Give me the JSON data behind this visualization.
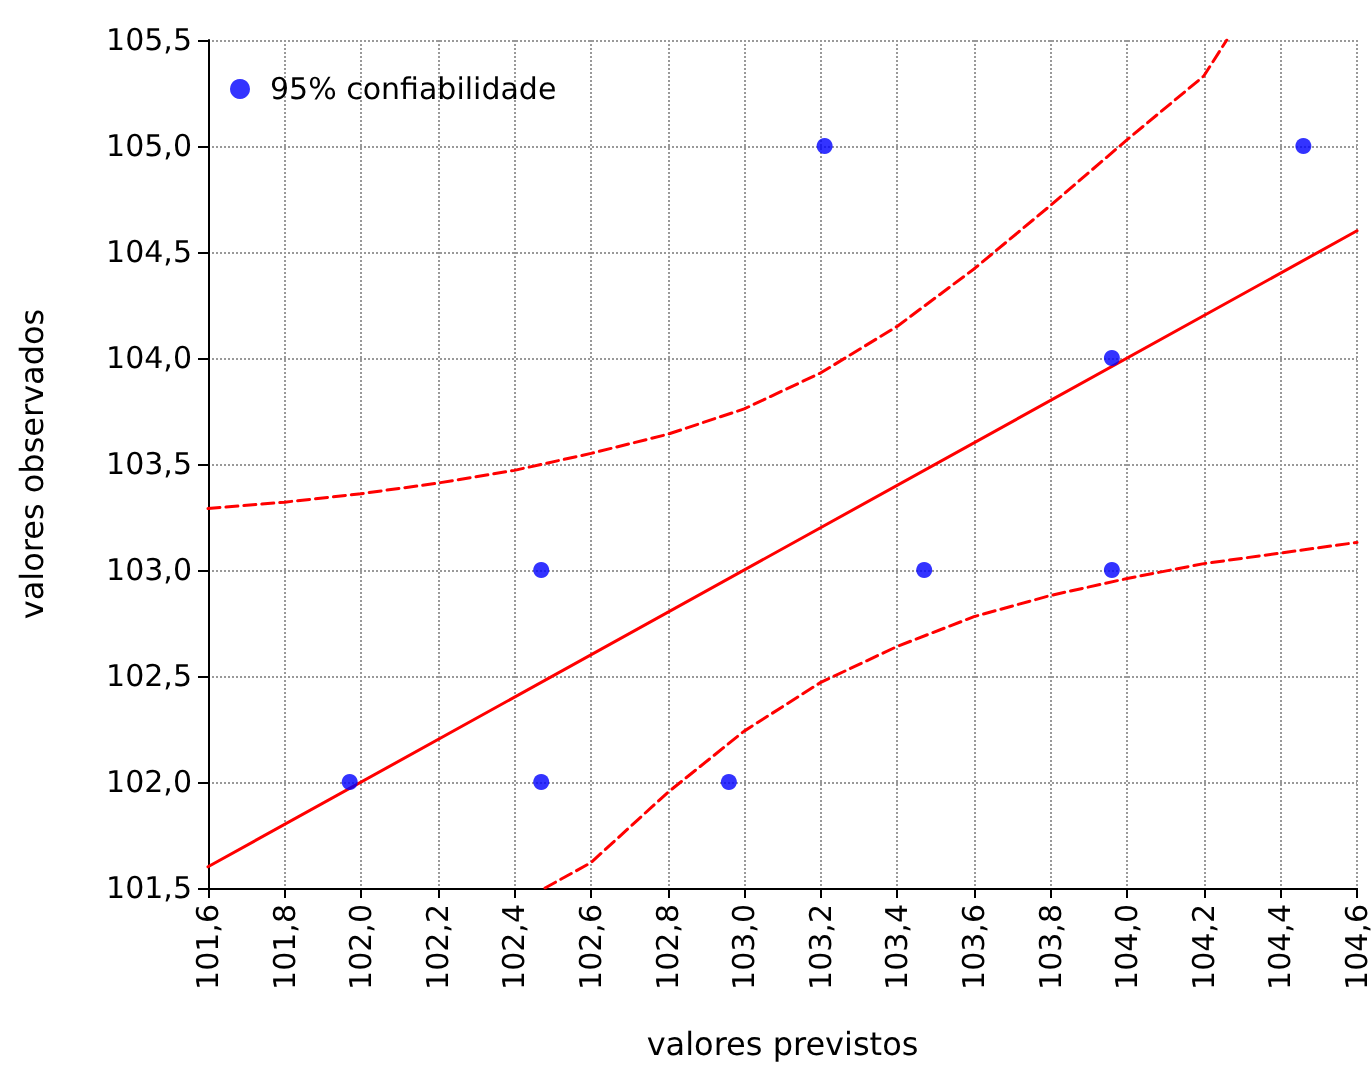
{
  "chart_data": {
    "type": "scatter",
    "xlabel": "valores previstos",
    "ylabel": "valores observados",
    "xlim": [
      101.6,
      104.6
    ],
    "ylim": [
      101.5,
      105.5
    ],
    "xticks": [
      {
        "value": 101.6,
        "label": "101,6"
      },
      {
        "value": 101.8,
        "label": "101,8"
      },
      {
        "value": 102.0,
        "label": "102,0"
      },
      {
        "value": 102.2,
        "label": "102,2"
      },
      {
        "value": 102.4,
        "label": "102,4"
      },
      {
        "value": 102.6,
        "label": "102,6"
      },
      {
        "value": 102.8,
        "label": "102,8"
      },
      {
        "value": 103.0,
        "label": "103,0"
      },
      {
        "value": 103.2,
        "label": "103,2"
      },
      {
        "value": 103.4,
        "label": "103,4"
      },
      {
        "value": 103.6,
        "label": "103,6"
      },
      {
        "value": 103.8,
        "label": "103,8"
      },
      {
        "value": 104.0,
        "label": "104,0"
      },
      {
        "value": 104.2,
        "label": "104,2"
      },
      {
        "value": 104.4,
        "label": "104,4"
      },
      {
        "value": 104.6,
        "label": "104,6"
      }
    ],
    "yticks": [
      {
        "value": 101.5,
        "label": "101,5"
      },
      {
        "value": 102.0,
        "label": "102,0"
      },
      {
        "value": 102.5,
        "label": "102,5"
      },
      {
        "value": 103.0,
        "label": "103,0"
      },
      {
        "value": 103.5,
        "label": "103,5"
      },
      {
        "value": 104.0,
        "label": "104,0"
      },
      {
        "value": 104.5,
        "label": "104,5"
      },
      {
        "value": 105.0,
        "label": "105,0"
      },
      {
        "value": 105.5,
        "label": "105,5"
      }
    ],
    "grid": true,
    "legend": "top left",
    "series": [
      {
        "type": "line",
        "color": "#ff0000",
        "line_style": "solid",
        "marker": "none",
        "x": [
          101.6,
          104.6
        ],
        "values": [
          101.6,
          104.6
        ]
      },
      {
        "type": "line",
        "color": "#ff0000",
        "line_style": "dashed",
        "marker": "none",
        "x": [
          101.6,
          101.8,
          102.0,
          102.2,
          102.4,
          102.6,
          102.8,
          103.0,
          103.2,
          103.4,
          103.6,
          103.8,
          104.0,
          104.2,
          104.26
        ],
        "values": [
          103.29,
          103.32,
          103.36,
          103.41,
          103.47,
          103.55,
          103.64,
          103.76,
          103.93,
          104.15,
          104.42,
          104.72,
          105.03,
          105.33,
          105.5
        ]
      },
      {
        "type": "line",
        "color": "#ff0000",
        "line_style": "dashed",
        "marker": "none",
        "x": [
          102.48,
          102.6,
          102.8,
          103.0,
          103.2,
          103.4,
          103.6,
          103.8,
          104.0,
          104.2,
          104.4,
          104.6
        ],
        "values": [
          101.5,
          101.62,
          101.95,
          102.24,
          102.47,
          102.64,
          102.78,
          102.88,
          102.96,
          103.03,
          103.08,
          103.13
        ]
      },
      {
        "name": "95% confiabilidade",
        "color": "#0000ff",
        "marker": "circle",
        "x": [
          101.97,
          102.47,
          102.47,
          102.96,
          103.21,
          103.47,
          103.96,
          103.96,
          104.46
        ],
        "values": [
          102.0,
          103.0,
          102.0,
          102.0,
          105.0,
          103.0,
          104.0,
          103.0,
          105.0
        ]
      }
    ]
  }
}
